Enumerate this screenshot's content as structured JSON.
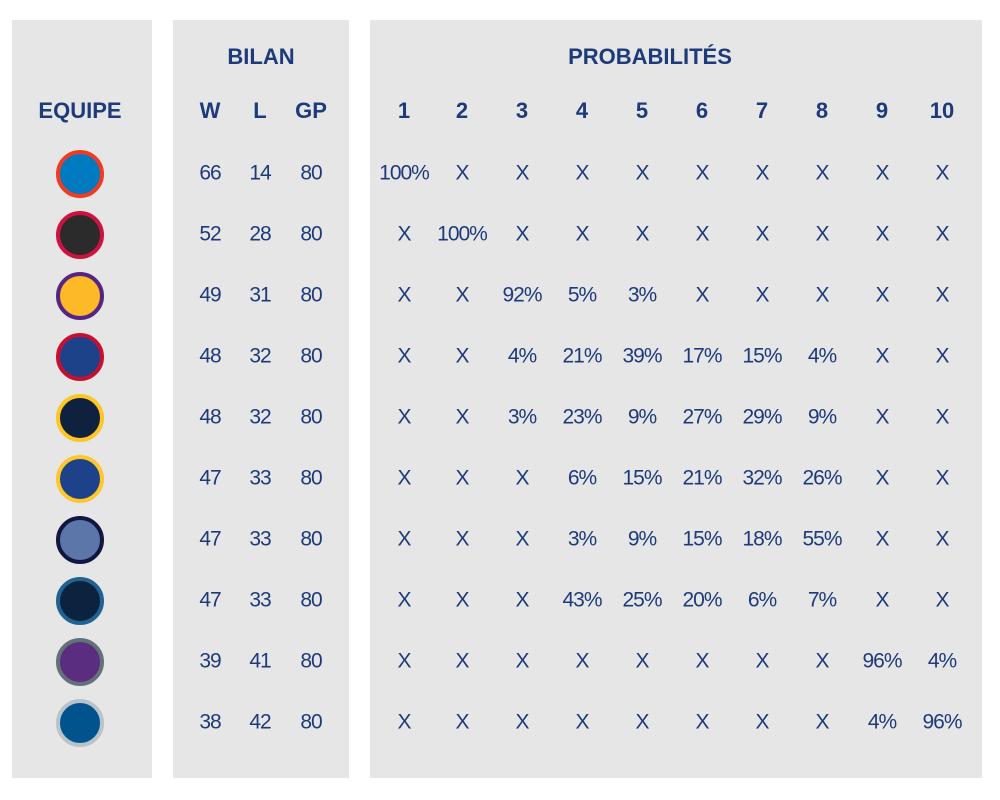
{
  "equipe": {
    "title": "EQUIPE"
  },
  "bilan": {
    "title": "BILAN",
    "columns": [
      "W",
      "L",
      "GP"
    ]
  },
  "probabilites": {
    "title": "PROBABILITÉS",
    "columns": [
      "1",
      "2",
      "3",
      "4",
      "5",
      "6",
      "7",
      "8",
      "9",
      "10"
    ]
  },
  "rows": [
    {
      "record": [
        66,
        14,
        80
      ],
      "probs": [
        "100%",
        "X",
        "X",
        "X",
        "X",
        "X",
        "X",
        "X",
        "X",
        "X"
      ]
    },
    {
      "record": [
        52,
        28,
        80
      ],
      "probs": [
        "X",
        "100%",
        "X",
        "X",
        "X",
        "X",
        "X",
        "X",
        "X",
        "X"
      ]
    },
    {
      "record": [
        49,
        31,
        80
      ],
      "probs": [
        "X",
        "X",
        "92%",
        "5%",
        "3%",
        "X",
        "X",
        "X",
        "X",
        "X"
      ]
    },
    {
      "record": [
        48,
        32,
        80
      ],
      "probs": [
        "X",
        "X",
        "4%",
        "21%",
        "39%",
        "17%",
        "15%",
        "4%",
        "X",
        "X"
      ]
    },
    {
      "record": [
        48,
        32,
        80
      ],
      "probs": [
        "X",
        "X",
        "3%",
        "23%",
        "9%",
        "27%",
        "29%",
        "9%",
        "X",
        "X"
      ]
    },
    {
      "record": [
        47,
        33,
        80
      ],
      "probs": [
        "X",
        "X",
        "X",
        "6%",
        "15%",
        "21%",
        "32%",
        "26%",
        "X",
        "X"
      ]
    },
    {
      "record": [
        47,
        33,
        80
      ],
      "probs": [
        "X",
        "X",
        "X",
        "3%",
        "9%",
        "15%",
        "18%",
        "55%",
        "X",
        "X"
      ]
    },
    {
      "record": [
        47,
        33,
        80
      ],
      "probs": [
        "X",
        "X",
        "X",
        "43%",
        "25%",
        "20%",
        "6%",
        "7%",
        "X",
        "X"
      ]
    },
    {
      "record": [
        39,
        41,
        80
      ],
      "probs": [
        "X",
        "X",
        "X",
        "X",
        "X",
        "X",
        "X",
        "X",
        "96%",
        "4%"
      ]
    },
    {
      "record": [
        38,
        42,
        80
      ],
      "probs": [
        "X",
        "X",
        "X",
        "X",
        "X",
        "X",
        "X",
        "X",
        "4%",
        "96%"
      ]
    }
  ]
}
